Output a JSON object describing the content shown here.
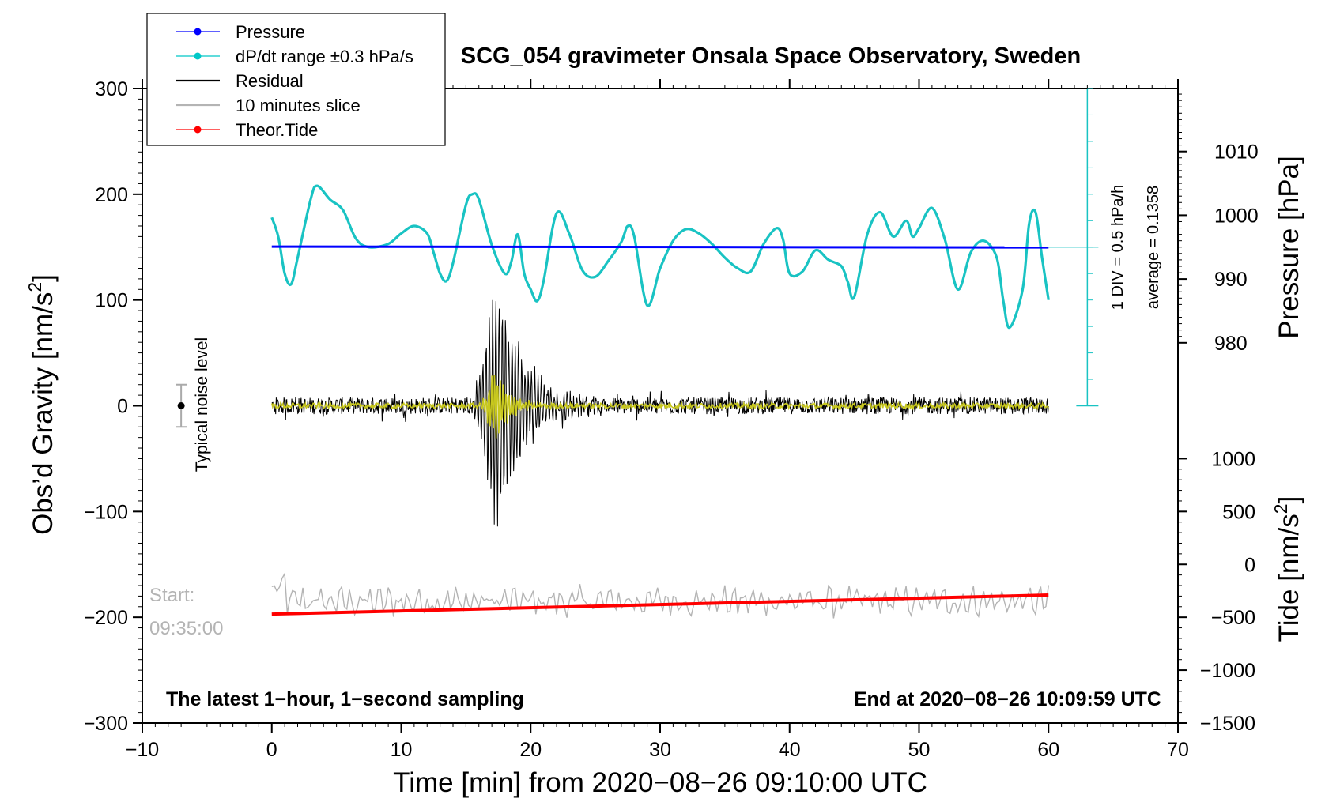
{
  "chart_data": {
    "type": "line",
    "title": "SCG_054 gravimeter Onsala Space Observatory, Sweden",
    "xlabel": "Time [min] from 2020−08−26 09:10:00 UTC",
    "ylabel_left": "Obs’d Gravity [nm/s²]",
    "ylabel_left_main": "Obs’d Gravity [nm/s",
    "ylabel_right_pressure": "Pressure [hPa]",
    "ylabel_right_tide_main": "Tide [nm/s",
    "superscript": "2",
    "close_bracket": "]",
    "xlim": [
      -10,
      70
    ],
    "ylim_left": [
      -300,
      300
    ],
    "x_ticks": [
      -10,
      0,
      10,
      20,
      30,
      40,
      50,
      60,
      70
    ],
    "x_tick_labels": [
      "−10",
      "0",
      "10",
      "20",
      "30",
      "40",
      "50",
      "60",
      "70"
    ],
    "y_left_ticks": [
      -300,
      -200,
      -100,
      0,
      100,
      200,
      300
    ],
    "y_left_tick_labels": [
      "−300",
      "−200",
      "−100",
      "0",
      "100",
      "200",
      "300"
    ],
    "pressure_axis": {
      "ticks": [
        980,
        990,
        1000,
        1010
      ],
      "tick_labels": [
        "980",
        "990",
        "1000",
        "1010"
      ],
      "ref": {
        "value": 995,
        "gravity": 150
      },
      "gravity_per_hPa": 6.03
    },
    "tide_axis": {
      "ticks": [
        -1500,
        -1000,
        -500,
        0,
        500,
        1000
      ],
      "tick_labels": [
        "−1500",
        "−1000",
        "−500",
        "0",
        "500",
        "1000"
      ],
      "gravity_per_unit": 0.1,
      "zero_at_gravity": -150
    },
    "legend": {
      "placement": "top-left",
      "entries": [
        {
          "label": "Pressure",
          "color": "#0000ff",
          "marker": true
        },
        {
          "label": "dP/dt range ±0.3 hPa/s",
          "color": "#00c8c8",
          "marker": true
        },
        {
          "label": "Residual",
          "color": "#000000",
          "marker": false
        },
        {
          "label": "10 minutes slice",
          "color": "#b4b4b4",
          "marker": false
        },
        {
          "label": "Theor.Tide",
          "color": "#ff0000",
          "marker": true
        }
      ]
    },
    "annotations": {
      "noise_label": "Typical noise level",
      "noise_bar": {
        "x": -7,
        "center": 0,
        "half_range": 20
      },
      "start_label": "Start:",
      "start_time": "09:35:00",
      "bottom_left": "The latest 1−hour, 1−second sampling",
      "bottom_right": "End at 2020−08−26 10:09:59 UTC",
      "div_label": "1 DIV = 0.5 hPa/h",
      "average_label": "average = 0.1358"
    },
    "colors": {
      "pressure": "#0000ff",
      "dpdt": "#19c3c3",
      "residual": "#000000",
      "slice": "#b4b4b4",
      "tide": "#ff0000",
      "filtered": "#c8c81e",
      "dpdt_axis": "#19c3c3"
    },
    "series": [
      {
        "name": "Pressure",
        "x_range": [
          0,
          60
        ],
        "gravity_value": 150.5,
        "pressure_hPa": 995.1
      },
      {
        "name": "dP/dt range ±0.3 hPa/s",
        "x": [
          0,
          0.5,
          1,
          1.5,
          2,
          3,
          3.5,
          4.5,
          5.5,
          6.5,
          7.5,
          9,
          10,
          11,
          12,
          12.5,
          13,
          13.5,
          14,
          15,
          15.5,
          16,
          17,
          18,
          18.5,
          19,
          19.5,
          20,
          20.5,
          21,
          22,
          23,
          24,
          25,
          26,
          27,
          27.5,
          28,
          29,
          30,
          31,
          32,
          33,
          34,
          35,
          36,
          37,
          38,
          39,
          39.5,
          40,
          41,
          42,
          43,
          44,
          44.5,
          45,
          46,
          47,
          48,
          49,
          49.5,
          50,
          51,
          52,
          53,
          54,
          55,
          56,
          56.5,
          57,
          58,
          58.5,
          59,
          59.5,
          60
        ],
        "values": [
          178,
          160,
          125,
          115,
          140,
          195,
          208,
          195,
          185,
          158,
          150,
          153,
          163,
          170,
          163,
          145,
          125,
          118,
          135,
          190,
          200,
          195,
          152,
          125,
          136,
          162,
          125,
          110,
          99,
          118,
          182,
          162,
          128,
          122,
          137,
          155,
          170,
          160,
          95,
          130,
          156,
          167,
          163,
          153,
          140,
          130,
          127,
          153,
          168,
          157,
          125,
          127,
          147,
          138,
          132,
          117,
          103,
          162,
          183,
          160,
          175,
          160,
          168,
          187,
          157,
          110,
          145,
          156,
          140,
          100,
          74,
          110,
          172,
          183,
          140,
          100
        ]
      },
      {
        "name": "Residual",
        "x_range": [
          0,
          60
        ],
        "noise_amplitude": 8,
        "event": {
          "center_min": 17.5,
          "peak_amplitude": 120,
          "period_min": 0.25,
          "span_min": [
            15,
            26
          ]
        }
      },
      {
        "name": "10 minutes slice",
        "x_range": [
          0,
          60
        ],
        "baseline": -185,
        "noise_amplitude": 12
      },
      {
        "name": "Theor.Tide",
        "x": [
          0,
          60
        ],
        "values": [
          -197,
          -179
        ],
        "tide_units": [
          -470,
          -290
        ]
      }
    ]
  }
}
